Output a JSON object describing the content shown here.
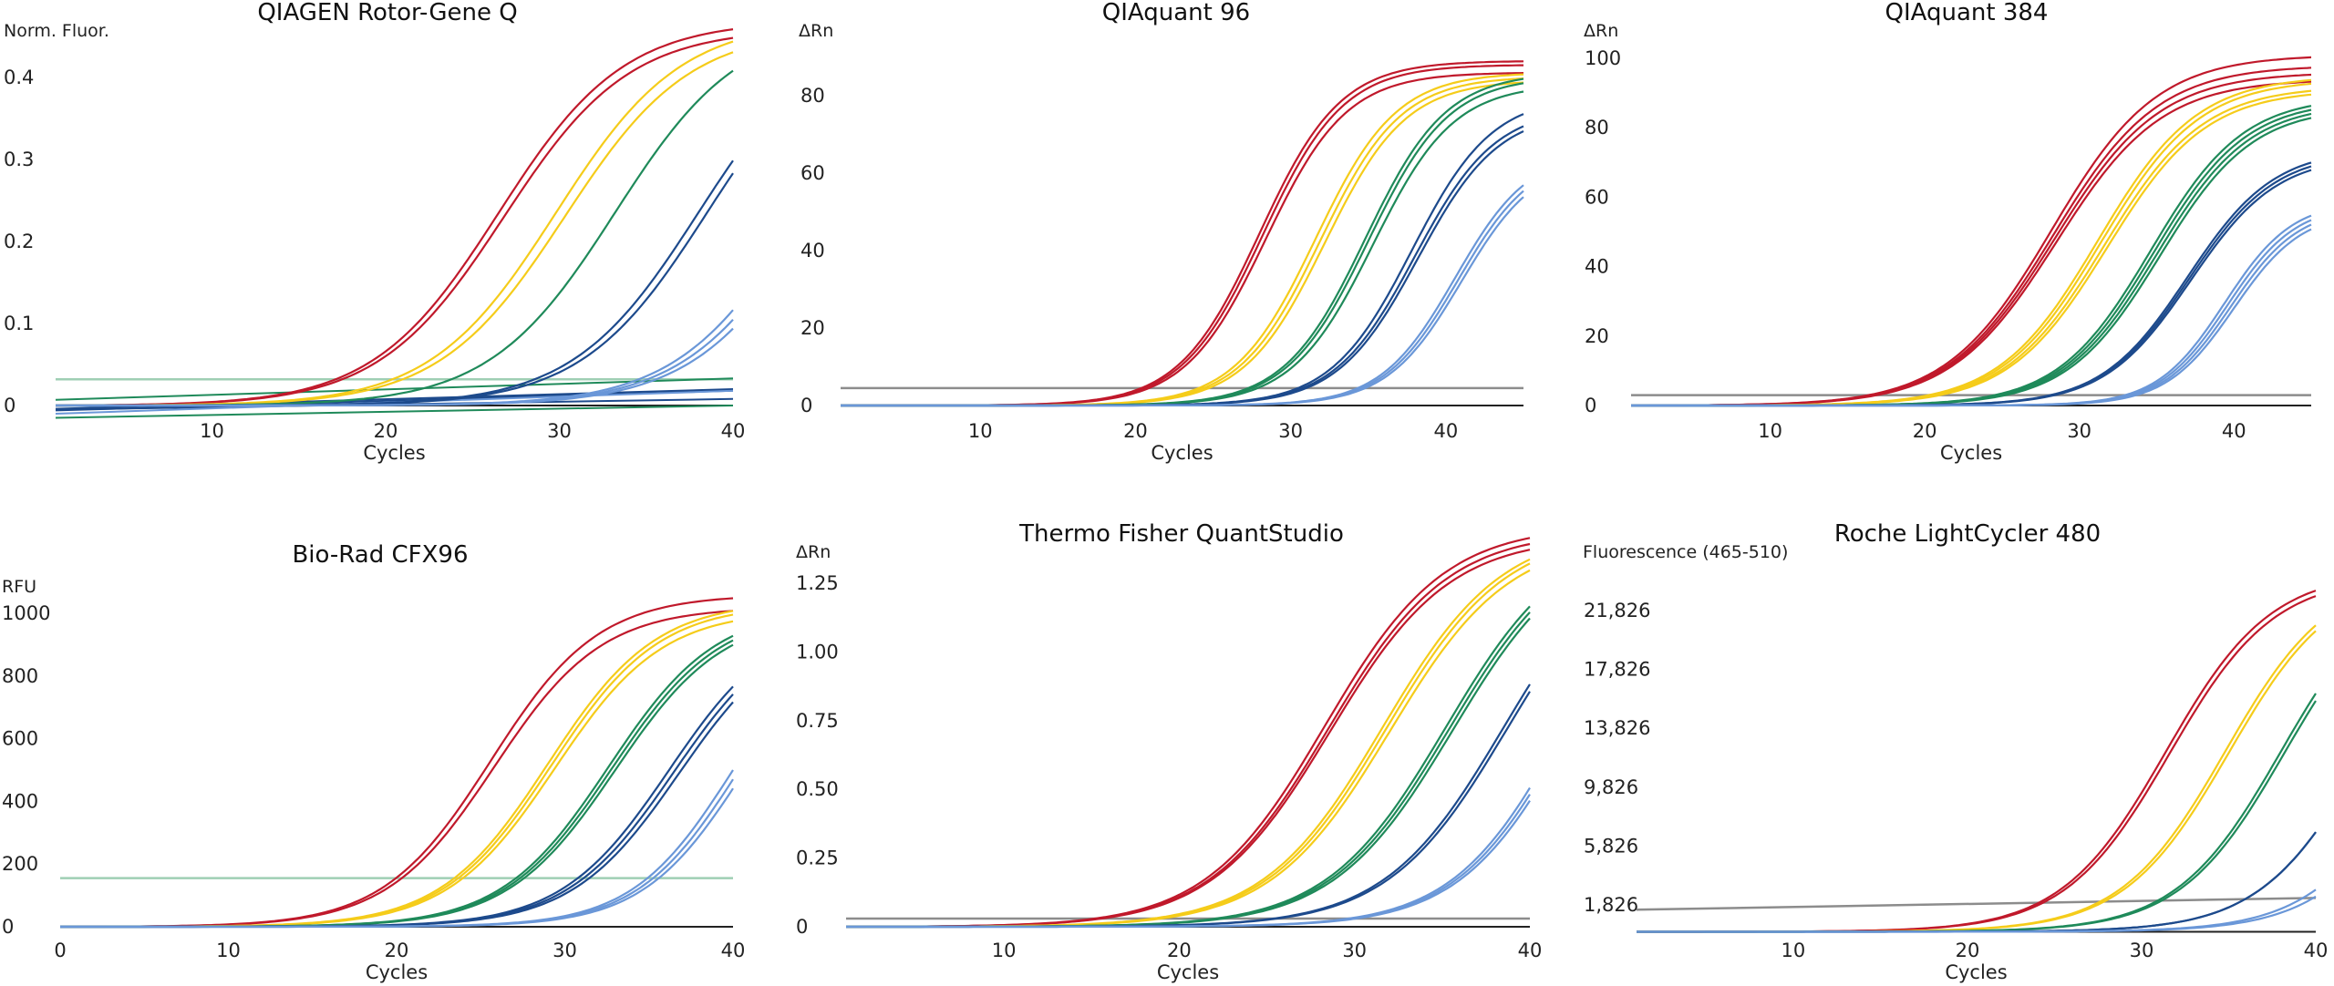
{
  "palette": {
    "red": "#c0192b",
    "yellow": "#f5cc1a",
    "green": "#1f8a5a",
    "navy": "#1d4a8c",
    "lightblue": "#6a97d8",
    "threshold_gray": "#8c8c8c",
    "threshold_green": "#9fcfb4",
    "baseline": "#222222"
  },
  "chart_data": [
    {
      "id": "rotorgene",
      "type": "line",
      "title": "QIAGEN Rotor-Gene Q",
      "ylabel": "Norm. Fluor.",
      "xlabel": "Cycles",
      "xlim": [
        1,
        40
      ],
      "ylim": [
        -0.03,
        0.44
      ],
      "xticks": [
        10,
        20,
        30,
        40
      ],
      "xtick_labels": [
        "10",
        "20",
        "30",
        "40"
      ],
      "yticks": [
        0,
        0.1,
        0.2,
        0.3,
        0.4
      ],
      "ytick_labels": [
        "0",
        "0.1",
        "0.2",
        "0.3",
        "0.4"
      ],
      "threshold": {
        "value": 0.032,
        "color": "threshold_green"
      },
      "grid": false,
      "series": [
        {
          "name": "red",
          "color": "red",
          "replicates": 2,
          "plateau": [
            0.47,
            0.46
          ],
          "midpoint": [
            26.5,
            26.8
          ],
          "slope": 3.6
        },
        {
          "name": "yellow",
          "color": "yellow",
          "replicates": 2,
          "plateau": [
            0.47,
            0.46
          ],
          "midpoint": [
            29.8,
            30.3
          ],
          "slope": 3.6
        },
        {
          "name": "green",
          "color": "green",
          "replicates": 1,
          "plateau": [
            0.47
          ],
          "midpoint": [
            33.2
          ],
          "slope": 3.6
        },
        {
          "name": "navy",
          "color": "navy",
          "replicates": 2,
          "plateau": [
            0.47,
            0.47
          ],
          "midpoint": [
            38.0,
            38.5
          ],
          "slope": 3.6
        },
        {
          "name": "lightblue",
          "color": "lightblue",
          "replicates": 3,
          "plateau": [
            0.47,
            0.47,
            0.47
          ],
          "midpoint": [
            44.0,
            44.5,
            45.0
          ],
          "slope": 3.6
        }
      ],
      "drift_lines": [
        {
          "color": "green",
          "start": 0.007,
          "end": 0.033
        },
        {
          "color": "navy",
          "start": -0.004,
          "end": 0.02
        },
        {
          "color": "navy",
          "start": -0.006,
          "end": 0.018
        },
        {
          "color": "navy",
          "start": -0.005,
          "end": 0.008
        },
        {
          "color": "lightblue",
          "start": -0.01,
          "end": 0.018
        },
        {
          "color": "green",
          "start": -0.015,
          "end": 0.0
        }
      ]
    },
    {
      "id": "qiaquant96",
      "type": "line",
      "title": "QIAquant 96",
      "ylabel": "ΔRn",
      "xlabel": "Cycles",
      "xlim": [
        1,
        45
      ],
      "ylim": [
        0,
        90
      ],
      "xticks": [
        10,
        20,
        30,
        40
      ],
      "xtick_labels": [
        "10",
        "20",
        "30",
        "40"
      ],
      "yticks": [
        0,
        20,
        40,
        60,
        80
      ],
      "ytick_labels": [
        "0",
        "20",
        "40",
        "60",
        "80"
      ],
      "threshold": {
        "value": 4.5,
        "color": "threshold_gray"
      },
      "grid": false,
      "series": [
        {
          "name": "red",
          "color": "red",
          "replicates": 3,
          "plateau": [
            89,
            88,
            86
          ],
          "midpoint": [
            28.0,
            28.2,
            28.4
          ],
          "slope": 2.6
        },
        {
          "name": "yellow",
          "color": "yellow",
          "replicates": 3,
          "plateau": [
            86,
            85,
            84
          ],
          "midpoint": [
            31.6,
            31.9,
            32.2
          ],
          "slope": 2.6
        },
        {
          "name": "green",
          "color": "green",
          "replicates": 3,
          "plateau": [
            86,
            85,
            83
          ],
          "midpoint": [
            34.8,
            35.0,
            35.3
          ],
          "slope": 2.6
        },
        {
          "name": "navy",
          "color": "navy",
          "replicates": 3,
          "plateau": [
            80,
            77,
            76
          ],
          "midpoint": [
            37.8,
            38.0,
            38.2
          ],
          "slope": 2.6
        },
        {
          "name": "lightblue",
          "color": "lightblue",
          "replicates": 3,
          "plateau": [
            66,
            65,
            64
          ],
          "midpoint": [
            40.6,
            40.8,
            41.0
          ],
          "slope": 2.4
        }
      ]
    },
    {
      "id": "qiaquant384",
      "type": "line",
      "title": "QIAquant 384",
      "ylabel": "ΔRn",
      "xlabel": "Cycles",
      "xlim": [
        1,
        45
      ],
      "ylim": [
        0,
        100
      ],
      "xticks": [
        10,
        20,
        30,
        40
      ],
      "xtick_labels": [
        "10",
        "20",
        "30",
        "40"
      ],
      "yticks": [
        0,
        20,
        40,
        60,
        80,
        100
      ],
      "ytick_labels": [
        "0",
        "20",
        "40",
        "60",
        "80",
        "100"
      ],
      "threshold": {
        "value": 3,
        "color": "threshold_gray"
      },
      "grid": false,
      "series": [
        {
          "name": "red",
          "color": "red",
          "replicates": 4,
          "plateau": [
            101,
            98,
            96,
            94
          ],
          "midpoint": [
            28.2,
            28.3,
            28.4,
            28.5
          ],
          "slope": 3.4
        },
        {
          "name": "yellow",
          "color": "yellow",
          "replicates": 4,
          "plateau": [
            95,
            94,
            92,
            91
          ],
          "midpoint": [
            31.2,
            31.4,
            31.6,
            31.8
          ],
          "slope": 3.2
        },
        {
          "name": "green",
          "color": "green",
          "replicates": 4,
          "plateau": [
            89,
            88,
            87,
            86
          ],
          "midpoint": [
            34.6,
            34.8,
            35.0,
            35.2
          ],
          "slope": 3.0
        },
        {
          "name": "navy",
          "color": "navy",
          "replicates": 3,
          "plateau": [
            74,
            73,
            72
          ],
          "midpoint": [
            37.0,
            37.1,
            37.2
          ],
          "slope": 2.8
        },
        {
          "name": "lightblue",
          "color": "lightblue",
          "replicates": 4,
          "plateau": [
            59,
            58,
            57,
            56
          ],
          "midpoint": [
            39.4,
            39.6,
            39.8,
            40.0
          ],
          "slope": 2.2
        }
      ]
    },
    {
      "id": "biorad",
      "type": "line",
      "title": "Bio-Rad CFX96",
      "ylabel": "RFU",
      "xlabel": "Cycles",
      "xlim": [
        0,
        40
      ],
      "ylim": [
        -50,
        1050
      ],
      "xticks": [
        0,
        10,
        20,
        30,
        40
      ],
      "xtick_labels": [
        "0",
        "10",
        "20",
        "30",
        "40"
      ],
      "yticks": [
        0,
        200,
        400,
        600,
        800,
        1000
      ],
      "ytick_labels": [
        "0",
        "200",
        "400",
        "600",
        "800",
        "1000"
      ],
      "threshold": {
        "value": 155,
        "color": "threshold_green"
      },
      "grid": false,
      "series": [
        {
          "name": "red",
          "color": "red",
          "replicates": 2,
          "plateau": [
            1060,
            1020
          ],
          "midpoint": [
            25.6,
            25.8
          ],
          "slope": 3.2
        },
        {
          "name": "yellow",
          "color": "yellow",
          "replicates": 3,
          "plateau": [
            1040,
            1030,
            1010
          ],
          "midpoint": [
            29.0,
            29.2,
            29.4
          ],
          "slope": 3.2
        },
        {
          "name": "green",
          "color": "green",
          "replicates": 3,
          "plateau": [
            1020,
            1010,
            1000
          ],
          "midpoint": [
            32.6,
            32.8,
            33.0
          ],
          "slope": 3.2
        },
        {
          "name": "navy",
          "color": "navy",
          "replicates": 3,
          "plateau": [
            1000,
            990,
            980
          ],
          "midpoint": [
            36.2,
            36.5,
            36.8
          ],
          "slope": 3.2
        },
        {
          "name": "lightblue",
          "color": "lightblue",
          "replicates": 3,
          "plateau": [
            1000,
            990,
            980
          ],
          "midpoint": [
            40.0,
            40.3,
            40.6
          ],
          "slope": 3.0
        }
      ]
    },
    {
      "id": "quantstudio",
      "type": "line",
      "title": "Thermo Fisher QuantStudio",
      "ylabel": "ΔRn",
      "xlabel": "Cycles",
      "xlim": [
        1,
        40
      ],
      "ylim": [
        0,
        1.35
      ],
      "xticks": [
        10,
        20,
        30,
        40
      ],
      "xtick_labels": [
        "10",
        "20",
        "30",
        "40"
      ],
      "yticks": [
        0,
        0.25,
        0.5,
        0.75,
        1.0,
        1.25
      ],
      "ytick_labels": [
        "0",
        "0.25",
        "0.50",
        "0.75",
        "1.00",
        "1.25"
      ],
      "threshold": {
        "value": 0.03,
        "color": "threshold_gray"
      },
      "grid": false,
      "series": [
        {
          "name": "red",
          "color": "red",
          "replicates": 3,
          "plateau": [
            1.46,
            1.44,
            1.42
          ],
          "midpoint": [
            28.3,
            28.5,
            28.6
          ],
          "slope": 3.4
        },
        {
          "name": "yellow",
          "color": "yellow",
          "replicates": 3,
          "plateau": [
            1.45,
            1.44,
            1.42
          ],
          "midpoint": [
            31.6,
            31.8,
            32.0
          ],
          "slope": 3.4
        },
        {
          "name": "green",
          "color": "green",
          "replicates": 3,
          "plateau": [
            1.45,
            1.44,
            1.43
          ],
          "midpoint": [
            35.2,
            35.4,
            35.6
          ],
          "slope": 3.4
        },
        {
          "name": "navy",
          "color": "navy",
          "replicates": 2,
          "plateau": [
            1.45,
            1.44
          ],
          "midpoint": [
            38.5,
            38.7
          ],
          "slope": 3.4
        },
        {
          "name": "lightblue",
          "color": "lightblue",
          "replicates": 3,
          "plateau": [
            1.45,
            1.44,
            1.43
          ],
          "midpoint": [
            42.0,
            42.2,
            42.4
          ],
          "slope": 3.2
        }
      ]
    },
    {
      "id": "lightcycler",
      "type": "line",
      "title": "Roche LightCycler 480",
      "ylabel": "Fluorescence (465-510)",
      "xlabel": "Cycles",
      "xlim": [
        1,
        40
      ],
      "ylim": [
        -200,
        23000
      ],
      "xticks": [
        10,
        20,
        30,
        40
      ],
      "xtick_labels": [
        "10",
        "20",
        "30",
        "40"
      ],
      "yticks": [
        1826,
        5826,
        9826,
        13826,
        17826,
        21826
      ],
      "ytick_labels": [
        "1,826",
        "5,826",
        "9,826",
        "13,826",
        "17,826",
        "21,826"
      ],
      "threshold": {
        "start": 1500,
        "end": 2300,
        "color": "threshold_gray"
      },
      "grid": false,
      "series": [
        {
          "name": "red",
          "color": "red",
          "replicates": 2,
          "plateau": [
            24500,
            24200
          ],
          "midpoint": [
            31.4,
            31.6
          ],
          "slope": 3.0
        },
        {
          "name": "yellow",
          "color": "yellow",
          "replicates": 2,
          "plateau": [
            24500,
            24300
          ],
          "midpoint": [
            34.8,
            35.0
          ],
          "slope": 3.0
        },
        {
          "name": "green",
          "color": "green",
          "replicates": 2,
          "plateau": [
            24500,
            24300
          ],
          "midpoint": [
            38.0,
            38.2
          ],
          "slope": 3.0
        },
        {
          "name": "navy",
          "color": "navy",
          "replicates": 2,
          "plateau": [
            24000,
            24000
          ],
          "midpoint": [
            42.8,
            42.8
          ],
          "slope": 3.0
        },
        {
          "name": "lightblue",
          "color": "lightblue",
          "replicates": 2,
          "plateau": [
            24000,
            24000
          ],
          "midpoint": [
            46.0,
            46.6
          ],
          "slope": 3.0
        }
      ]
    }
  ]
}
